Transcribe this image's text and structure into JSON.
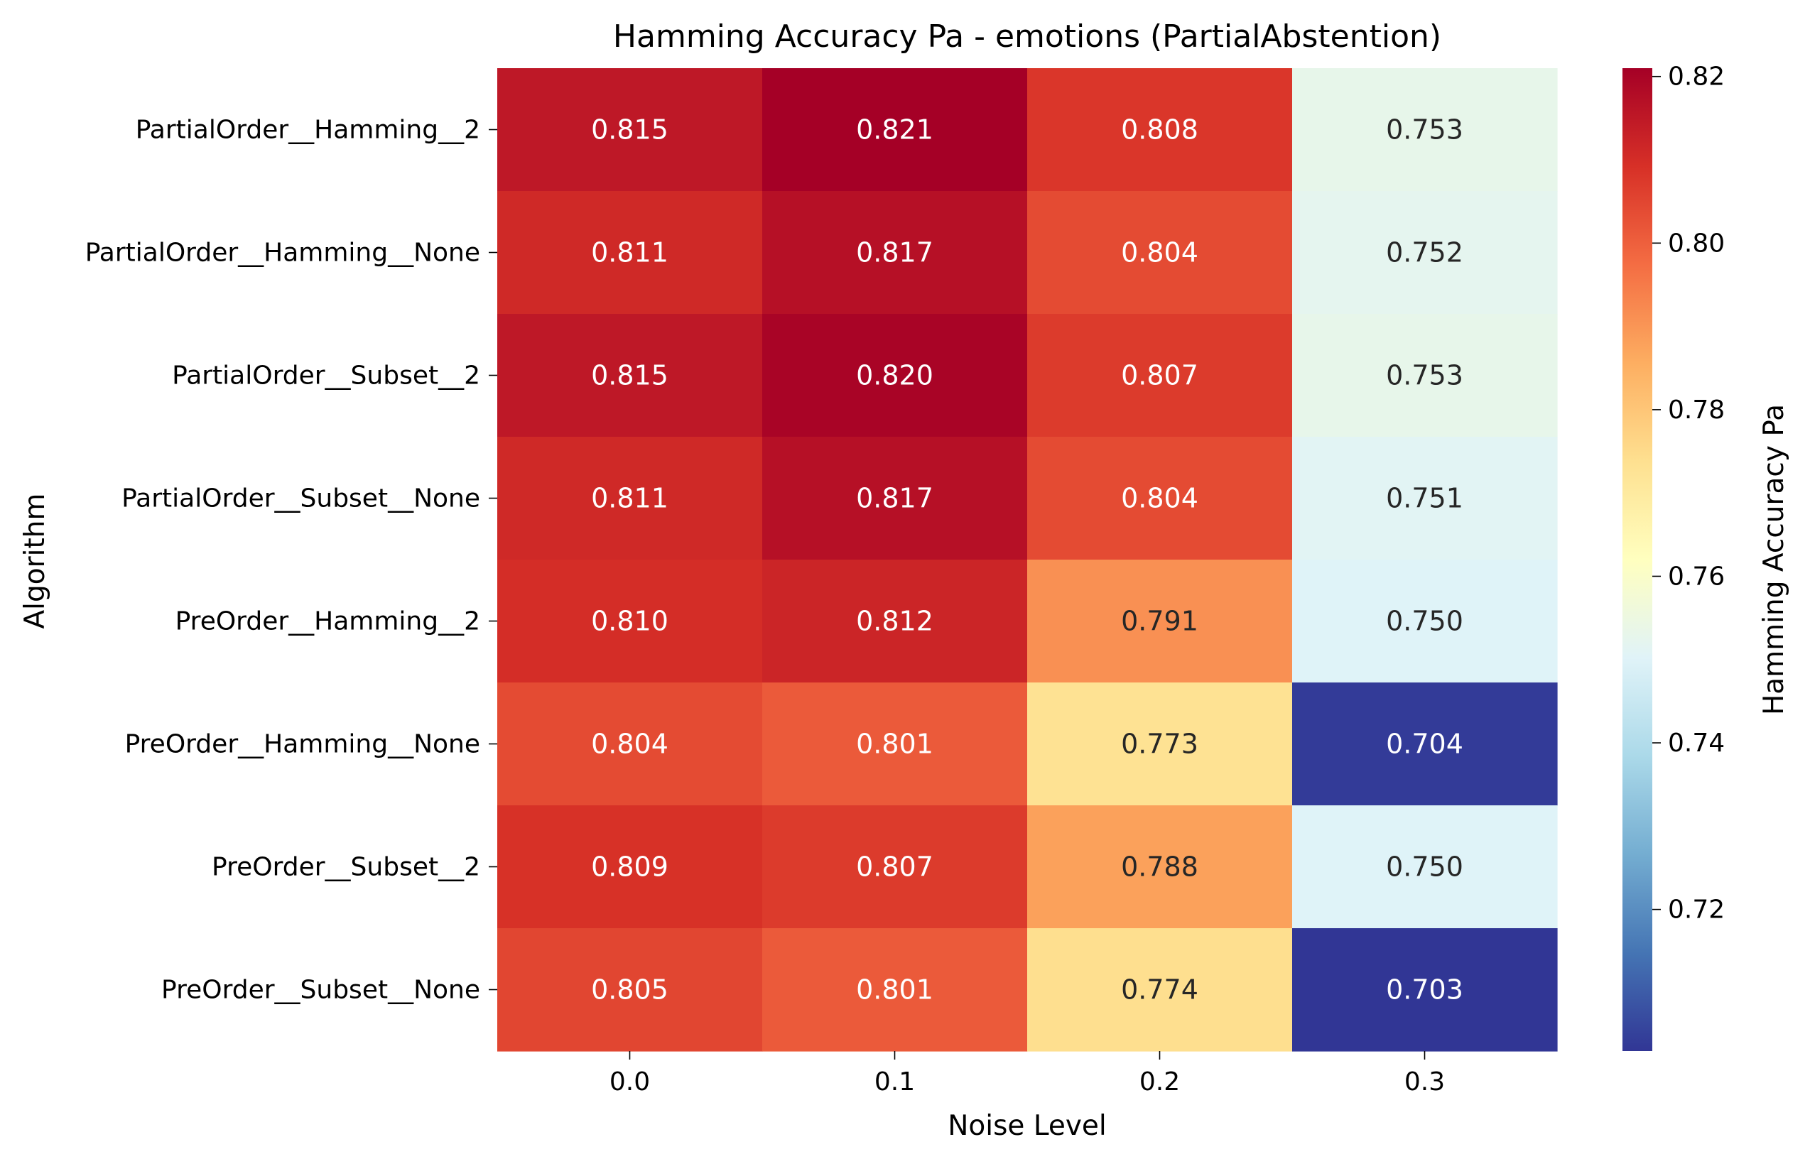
{
  "chart_data": {
    "type": "heatmap",
    "title": "Hamming Accuracy Pa - emotions (PartialAbstention)",
    "xlabel": "Noise Level",
    "ylabel": "Algorithm",
    "colorbar_label": "Hamming Accuracy Pa",
    "colormap": "RdYlBu_r",
    "x_categories": [
      "0.0",
      "0.1",
      "0.2",
      "0.3"
    ],
    "y_categories": [
      "PartialOrder__Hamming__2",
      "PartialOrder__Hamming__None",
      "PartialOrder__Subset__2",
      "PartialOrder__Subset__None",
      "PreOrder__Hamming__2",
      "PreOrder__Hamming__None",
      "PreOrder__Subset__2",
      "PreOrder__Subset__None"
    ],
    "values": [
      [
        0.815,
        0.821,
        0.808,
        0.753
      ],
      [
        0.811,
        0.817,
        0.804,
        0.752
      ],
      [
        0.815,
        0.82,
        0.807,
        0.753
      ],
      [
        0.811,
        0.817,
        0.804,
        0.751
      ],
      [
        0.81,
        0.812,
        0.791,
        0.75
      ],
      [
        0.804,
        0.801,
        0.773,
        0.704
      ],
      [
        0.809,
        0.807,
        0.788,
        0.75
      ],
      [
        0.805,
        0.801,
        0.774,
        0.703
      ]
    ],
    "value_labels": [
      [
        "0.815",
        "0.821",
        "0.808",
        "0.753"
      ],
      [
        "0.811",
        "0.817",
        "0.804",
        "0.752"
      ],
      [
        "0.815",
        "0.820",
        "0.807",
        "0.753"
      ],
      [
        "0.811",
        "0.817",
        "0.804",
        "0.751"
      ],
      [
        "0.810",
        "0.812",
        "0.791",
        "0.750"
      ],
      [
        "0.804",
        "0.801",
        "0.773",
        "0.704"
      ],
      [
        "0.809",
        "0.807",
        "0.788",
        "0.750"
      ],
      [
        "0.805",
        "0.801",
        "0.774",
        "0.703"
      ]
    ],
    "color_range": [
      0.703,
      0.821
    ],
    "colorbar_ticks": [
      "0.72",
      "0.74",
      "0.76",
      "0.78",
      "0.80",
      "0.82"
    ],
    "colorbar_tick_values": [
      0.72,
      0.74,
      0.76,
      0.78,
      0.8,
      0.82
    ]
  }
}
